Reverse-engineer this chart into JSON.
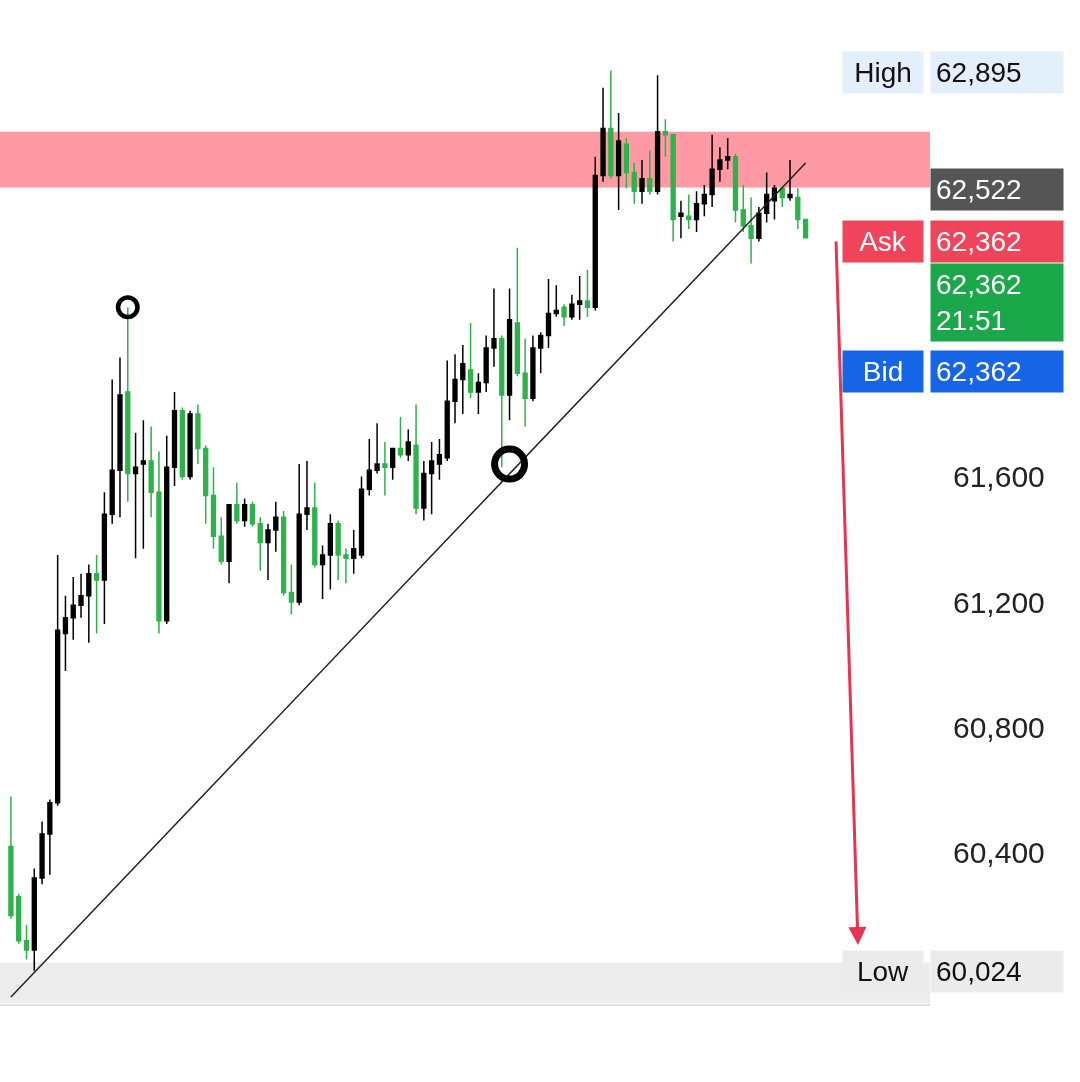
{
  "chart_data": {
    "type": "candlestick",
    "categories": [
      null,
      null,
      null,
      null,
      null,
      null,
      null,
      null,
      null,
      null,
      null,
      null,
      null,
      null,
      null,
      null,
      null,
      null,
      null,
      null,
      null,
      null,
      null,
      null,
      null,
      null,
      null,
      null,
      null,
      null,
      null,
      null,
      null,
      null,
      null,
      null,
      null,
      null,
      null,
      null,
      null,
      null,
      null,
      null,
      null,
      null,
      null,
      null,
      null,
      null,
      null,
      null,
      null,
      null,
      null,
      null,
      null,
      null,
      null,
      null,
      null,
      null,
      null,
      null,
      null,
      null,
      null,
      null,
      null,
      null,
      null,
      null,
      null,
      null,
      null,
      null,
      null,
      null,
      null,
      null,
      null,
      null,
      null,
      null,
      null,
      null,
      null,
      null,
      null,
      null,
      null,
      null,
      null,
      null,
      null,
      null,
      null,
      null,
      null,
      null,
      null,
      null,
      null
    ],
    "ohlc": [
      [
        60420,
        60580,
        60190,
        60200
      ],
      [
        60260,
        60270,
        60110,
        60120
      ],
      [
        60120,
        60170,
        60060,
        60090
      ],
      [
        60090,
        60350,
        60024,
        60320
      ],
      [
        60320,
        60500,
        60300,
        60460
      ],
      [
        60460,
        60570,
        60330,
        60560
      ],
      [
        60560,
        61350,
        60550,
        61110
      ],
      [
        61100,
        61220,
        60980,
        61150
      ],
      [
        61150,
        61280,
        61080,
        61190
      ],
      [
        61190,
        61290,
        61150,
        61220
      ],
      [
        61220,
        61320,
        61070,
        61290
      ],
      [
        61290,
        61350,
        61100,
        61270
      ],
      [
        61270,
        61550,
        61130,
        61480
      ],
      [
        61480,
        61910,
        61450,
        61620
      ],
      [
        61620,
        61980,
        61470,
        61860
      ],
      [
        61870,
        62140,
        61520,
        61610
      ],
      [
        61610,
        61740,
        61340,
        61630
      ],
      [
        61640,
        61780,
        61370,
        61650
      ],
      [
        61650,
        61760,
        61470,
        61550
      ],
      [
        61550,
        61680,
        61100,
        61140
      ],
      [
        61140,
        61730,
        61130,
        61630
      ],
      [
        61630,
        61870,
        61570,
        61810
      ],
      [
        61810,
        61820,
        61590,
        61600
      ],
      [
        61600,
        61810,
        61590,
        61800
      ],
      [
        61800,
        61830,
        61640,
        61690
      ],
      [
        61690,
        61700,
        61450,
        61540
      ],
      [
        61540,
        61630,
        61370,
        61410
      ],
      [
        61410,
        61470,
        61320,
        61330
      ],
      [
        61330,
        61510,
        61260,
        61510
      ],
      [
        61510,
        61580,
        61450,
        61460
      ],
      [
        61460,
        61530,
        61440,
        61510
      ],
      [
        61510,
        61520,
        61440,
        61450
      ],
      [
        61450,
        61470,
        61300,
        61390
      ],
      [
        61390,
        61450,
        61270,
        61430
      ],
      [
        61430,
        61520,
        61360,
        61470
      ],
      [
        61470,
        61490,
        61220,
        61230
      ],
      [
        61230,
        61320,
        61160,
        61200
      ],
      [
        61200,
        61640,
        61190,
        61480
      ],
      [
        61480,
        61650,
        61430,
        61500
      ],
      [
        61500,
        61580,
        61310,
        61320
      ],
      [
        61320,
        61380,
        61210,
        61350
      ],
      [
        61350,
        61480,
        61240,
        61450
      ],
      [
        61450,
        61460,
        61270,
        61350
      ],
      [
        61350,
        61370,
        61260,
        61340
      ],
      [
        61340,
        61430,
        61290,
        61370
      ],
      [
        61350,
        61600,
        61340,
        61560
      ],
      [
        61560,
        61720,
        61540,
        61620
      ],
      [
        61620,
        61770,
        61610,
        61640
      ],
      [
        61640,
        61710,
        61540,
        61630
      ],
      [
        61630,
        61690,
        61590,
        61690
      ],
      [
        61690,
        61790,
        61660,
        61670
      ],
      [
        61670,
        61750,
        61650,
        61710
      ],
      [
        61700,
        61830,
        61480,
        61500
      ],
      [
        61500,
        61650,
        61460,
        61610
      ],
      [
        61610,
        61710,
        61480,
        61650
      ],
      [
        61640,
        61720,
        61590,
        61670
      ],
      [
        61660,
        61970,
        61650,
        61840
      ],
      [
        61840,
        61990,
        61770,
        61910
      ],
      [
        61910,
        62020,
        61800,
        61960
      ],
      [
        61940,
        62090,
        61850,
        61870
      ],
      [
        61870,
        61930,
        61800,
        61900
      ],
      [
        61900,
        62050,
        61870,
        62010
      ],
      [
        62010,
        62200,
        61950,
        62040
      ],
      [
        62040,
        62050,
        61630,
        61860
      ],
      [
        61860,
        62200,
        61780,
        62100
      ],
      [
        62090,
        62330,
        61920,
        61930
      ],
      [
        61930,
        62040,
        61760,
        61850
      ],
      [
        61850,
        62050,
        61840,
        62010
      ],
      [
        62010,
        62060,
        61930,
        62050
      ],
      [
        62050,
        62230,
        62010,
        62120
      ],
      [
        62120,
        62210,
        62110,
        62130
      ],
      [
        62140,
        62150,
        62080,
        62110
      ],
      [
        62110,
        62180,
        62100,
        62150
      ],
      [
        62150,
        62240,
        62100,
        62160
      ],
      [
        62160,
        62260,
        62110,
        62140
      ],
      [
        62140,
        62620,
        62130,
        62560
      ],
      [
        62560,
        62840,
        62540,
        62710
      ],
      [
        62710,
        62895,
        62550,
        62560
      ],
      [
        62560,
        62760,
        62450,
        62670
      ],
      [
        62660,
        62680,
        62520,
        62570
      ],
      [
        62570,
        62600,
        62470,
        62510
      ],
      [
        62510,
        62610,
        62470,
        62550
      ],
      [
        62550,
        62640,
        62500,
        62510
      ],
      [
        62510,
        62880,
        62500,
        62700
      ],
      [
        62700,
        62740,
        62620,
        62690
      ],
      [
        62690,
        62690,
        62350,
        62420
      ],
      [
        62430,
        62480,
        62360,
        62440
      ],
      [
        62430,
        62500,
        62390,
        62420
      ],
      [
        62420,
        62510,
        62380,
        62470
      ],
      [
        62470,
        62530,
        62430,
        62500
      ],
      [
        62500,
        62690,
        62460,
        62580
      ],
      [
        62580,
        62650,
        62540,
        62610
      ],
      [
        62610,
        62680,
        62580,
        62620
      ],
      [
        62620,
        62630,
        62410,
        62450
      ],
      [
        62450,
        62530,
        62380,
        62400
      ],
      [
        62400,
        62490,
        62280,
        62360
      ],
      [
        62360,
        62460,
        62350,
        62440
      ],
      [
        62440,
        62570,
        62410,
        62500
      ],
      [
        62480,
        62530,
        62420,
        62520
      ],
      [
        62520,
        62520,
        62460,
        62490
      ],
      [
        62490,
        62610,
        62480,
        62500
      ],
      [
        62490,
        62520,
        62390,
        62420
      ],
      [
        62420,
        62420,
        62362,
        62362
      ]
    ],
    "colors": [
      "#2db34a",
      "#2db34a",
      "#2db34a",
      "#000000",
      "#000000",
      "#000000",
      "#000000",
      "#000000",
      "#000000",
      "#000000",
      "#000000",
      "#2db34a",
      "#000000",
      "#000000",
      "#000000",
      "#2db34a",
      "#000000",
      "#000000",
      "#2db34a",
      "#2db34a",
      "#000000",
      "#000000",
      "#2db34a",
      "#000000",
      "#2db34a",
      "#2db34a",
      "#2db34a",
      "#2db34a",
      "#000000",
      "#2db34a",
      "#000000",
      "#2db34a",
      "#2db34a",
      "#000000",
      "#000000",
      "#2db34a",
      "#2db34a",
      "#000000",
      "#000000",
      "#2db34a",
      "#000000",
      "#000000",
      "#2db34a",
      "#2db34a",
      "#000000",
      "#000000",
      "#000000",
      "#000000",
      "#2db34a",
      "#000000",
      "#2db34a",
      "#000000",
      "#2db34a",
      "#000000",
      "#000000",
      "#000000",
      "#000000",
      "#000000",
      "#000000",
      "#2db34a",
      "#000000",
      "#000000",
      "#000000",
      "#2db34a",
      "#000000",
      "#2db34a",
      "#2db34a",
      "#000000",
      "#000000",
      "#000000",
      "#000000",
      "#2db34a",
      "#000000",
      "#000000",
      "#2db34a",
      "#000000",
      "#000000",
      "#2db34a",
      "#000000",
      "#2db34a",
      "#2db34a",
      "#000000",
      "#2db34a",
      "#000000",
      "#2db34a",
      "#2db34a",
      "#000000",
      "#2db34a",
      "#000000",
      "#000000",
      "#000000",
      "#000000",
      "#000000",
      "#2db34a",
      "#2db34a",
      "#2db34a",
      "#000000",
      "#000000",
      "#000000",
      "#2db34a",
      "#000000",
      "#2db34a",
      "#2db34a"
    ],
    "series": [
      {
        "type": "line",
        "values": [
          59940,
          null,
          null,
          null,
          null,
          null,
          null,
          null,
          null,
          null,
          null,
          null,
          null,
          null,
          null,
          null,
          null,
          null,
          null,
          null,
          null,
          null,
          null,
          null,
          null,
          null,
          null,
          null,
          null,
          null,
          null,
          null,
          null,
          null,
          null,
          null,
          null,
          null,
          null,
          null,
          null,
          null,
          null,
          null,
          null,
          null,
          null,
          null,
          null,
          null,
          null,
          null,
          null,
          null,
          null,
          null,
          null,
          null,
          null,
          null,
          null,
          null,
          null,
          null,
          null,
          null,
          null,
          null,
          null,
          null,
          null,
          null,
          null,
          null,
          null,
          null,
          null,
          null,
          null,
          null,
          null,
          null,
          null,
          null,
          null,
          null,
          null,
          null,
          null,
          null,
          null,
          null,
          null,
          null,
          null,
          null,
          null,
          null,
          null,
          null,
          null,
          null,
          62600
        ],
        "color": "#222222"
      },
      {
        "type": "bubble",
        "values": [
          null,
          null,
          null,
          null,
          null,
          null,
          null,
          null,
          null,
          null,
          null,
          null,
          null,
          null,
          null,
          62140,
          null,
          null,
          null,
          null,
          null,
          null,
          null,
          null,
          null,
          null,
          null,
          null,
          null,
          null,
          null,
          null,
          null,
          null,
          null,
          null,
          null,
          null,
          null,
          null,
          null,
          null,
          null,
          null,
          null,
          null,
          null,
          null,
          null,
          null,
          null,
          null,
          null,
          null,
          null,
          null,
          null,
          null,
          null,
          null,
          null,
          null,
          null,
          null,
          61640,
          null,
          null,
          null,
          null,
          null,
          null,
          null,
          null,
          null,
          null,
          null,
          null,
          null,
          null,
          null,
          null,
          null,
          null,
          null,
          null,
          null,
          null,
          null,
          null,
          null,
          null,
          null,
          null,
          null,
          null,
          null,
          null,
          null,
          null,
          null,
          null,
          null,
          null
        ],
        "sizes": [
          null,
          null,
          null,
          null,
          null,
          null,
          null,
          null,
          null,
          null,
          null,
          null,
          null,
          null,
          null,
          0.42,
          null,
          null,
          null,
          null,
          null,
          null,
          null,
          null,
          null,
          null,
          null,
          null,
          null,
          null,
          null,
          null,
          null,
          null,
          null,
          null,
          null,
          null,
          null,
          null,
          null,
          null,
          null,
          null,
          null,
          null,
          null,
          null,
          null,
          null,
          null,
          null,
          null,
          null,
          null,
          null,
          null,
          null,
          null,
          null,
          null,
          null,
          null,
          null,
          1,
          null,
          null,
          null,
          null,
          null,
          null,
          null,
          null,
          null,
          null,
          null,
          null,
          null,
          null,
          null,
          null,
          null,
          null,
          null,
          null,
          null,
          null,
          null,
          null,
          null,
          null,
          null,
          null,
          null,
          null,
          null,
          null,
          null,
          null,
          null,
          null,
          null,
          null
        ],
        "color": "#000000"
      }
    ],
    "bands": [
      {
        "axis": "y",
        "from": 62522,
        "to": 62700,
        "color": "#ff9aa5"
      },
      {
        "axis": "y",
        "from": 59920,
        "to": 60050,
        "color": "#ececec"
      }
    ],
    "annotations": [
      "High",
      "62,895",
      "62,522",
      "Ask",
      "62,362",
      "62,362\n21:51",
      "Bid",
      "62,362",
      "Low",
      "60,024"
    ],
    "ylim": [
      59918,
      63120
    ],
    "yticks": [
      {
        "value": 60400,
        "label": "60,400"
      },
      {
        "value": 60800,
        "label": "60,800"
      },
      {
        "value": 61200,
        "label": "61,200"
      },
      {
        "value": 61600,
        "label": "61,600"
      }
    ],
    "tick_labels": "y"
  }
}
